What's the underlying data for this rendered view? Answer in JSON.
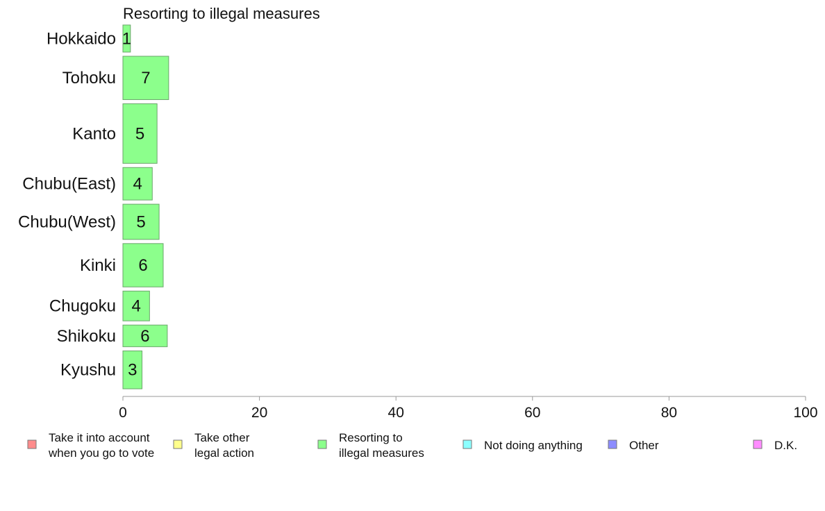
{
  "chart_data": {
    "type": "bar",
    "orientation": "horizontal",
    "title": "Resorting to illegal measures",
    "categories": [
      "Hokkaido",
      "Tohoku",
      "Kanto",
      "Chubu(East)",
      "Chubu(West)",
      "Kinki",
      "Chugoku",
      "Shikoku",
      "Kyushu"
    ],
    "values": [
      1,
      7,
      5,
      4,
      5,
      6,
      4,
      6,
      3
    ],
    "value_labels": [
      "1",
      "7",
      "5",
      "4",
      "5",
      "6",
      "4",
      "6",
      "3"
    ],
    "shown_values": [
      1.1,
      6.7,
      5.0,
      4.3,
      5.3,
      5.9,
      3.9,
      6.5,
      2.8
    ],
    "relative_widths": [
      0.5,
      0.8,
      1.1,
      0.6,
      0.65,
      0.8,
      0.55,
      0.4,
      0.7
    ],
    "xlim": [
      0,
      100
    ],
    "xticks": [
      "0",
      "20",
      "40",
      "60",
      "80",
      "100"
    ],
    "xlabel": "",
    "ylabel": "",
    "bar_color": "#8cff8c",
    "bar_stroke": "#6aa56a",
    "grid": false,
    "legend_position": "bottom",
    "legend": [
      {
        "label_lines": [
          "Take it into account",
          "when you go to vote"
        ],
        "color": "#ff8c8c"
      },
      {
        "label_lines": [
          "Take other",
          "legal action"
        ],
        "color": "#ffff8c"
      },
      {
        "label_lines": [
          "Resorting to",
          "illegal measures"
        ],
        "color": "#8cff8c"
      },
      {
        "label_lines": [
          "Not doing anything"
        ],
        "color": "#8cffff"
      },
      {
        "label_lines": [
          "Other"
        ],
        "color": "#8c8cff"
      },
      {
        "label_lines": [
          "D.K."
        ],
        "color": "#ff8cff"
      }
    ]
  }
}
